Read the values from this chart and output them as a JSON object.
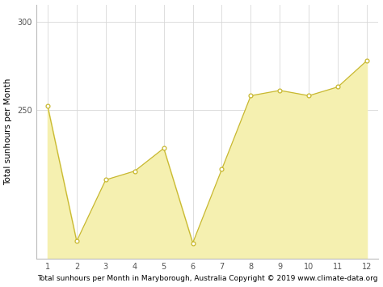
{
  "months": [
    1,
    2,
    3,
    4,
    5,
    6,
    7,
    8,
    9,
    10,
    11,
    12
  ],
  "sunhours": [
    252,
    175,
    210,
    215,
    228,
    174,
    216,
    258,
    261,
    258,
    263,
    278
  ],
  "fill_color": "#f5f0b0",
  "line_color": "#c8b830",
  "marker_color": "#ffffff",
  "marker_edge_color": "#c8b830",
  "ylabel": "Total sunhours per Month",
  "xlabel": "Total sunhours per Month in Maryborough, Australia Copyright © 2019 www.climate-data.org",
  "ylim_min": 165,
  "ylim_max": 310,
  "yticks": [
    250,
    300
  ],
  "xticks": [
    1,
    2,
    3,
    4,
    5,
    6,
    7,
    8,
    9,
    10,
    11,
    12
  ],
  "grid_color": "#d8d8d8",
  "background_color": "#ffffff",
  "xlabel_fontsize": 6.5,
  "ylabel_fontsize": 7.5
}
